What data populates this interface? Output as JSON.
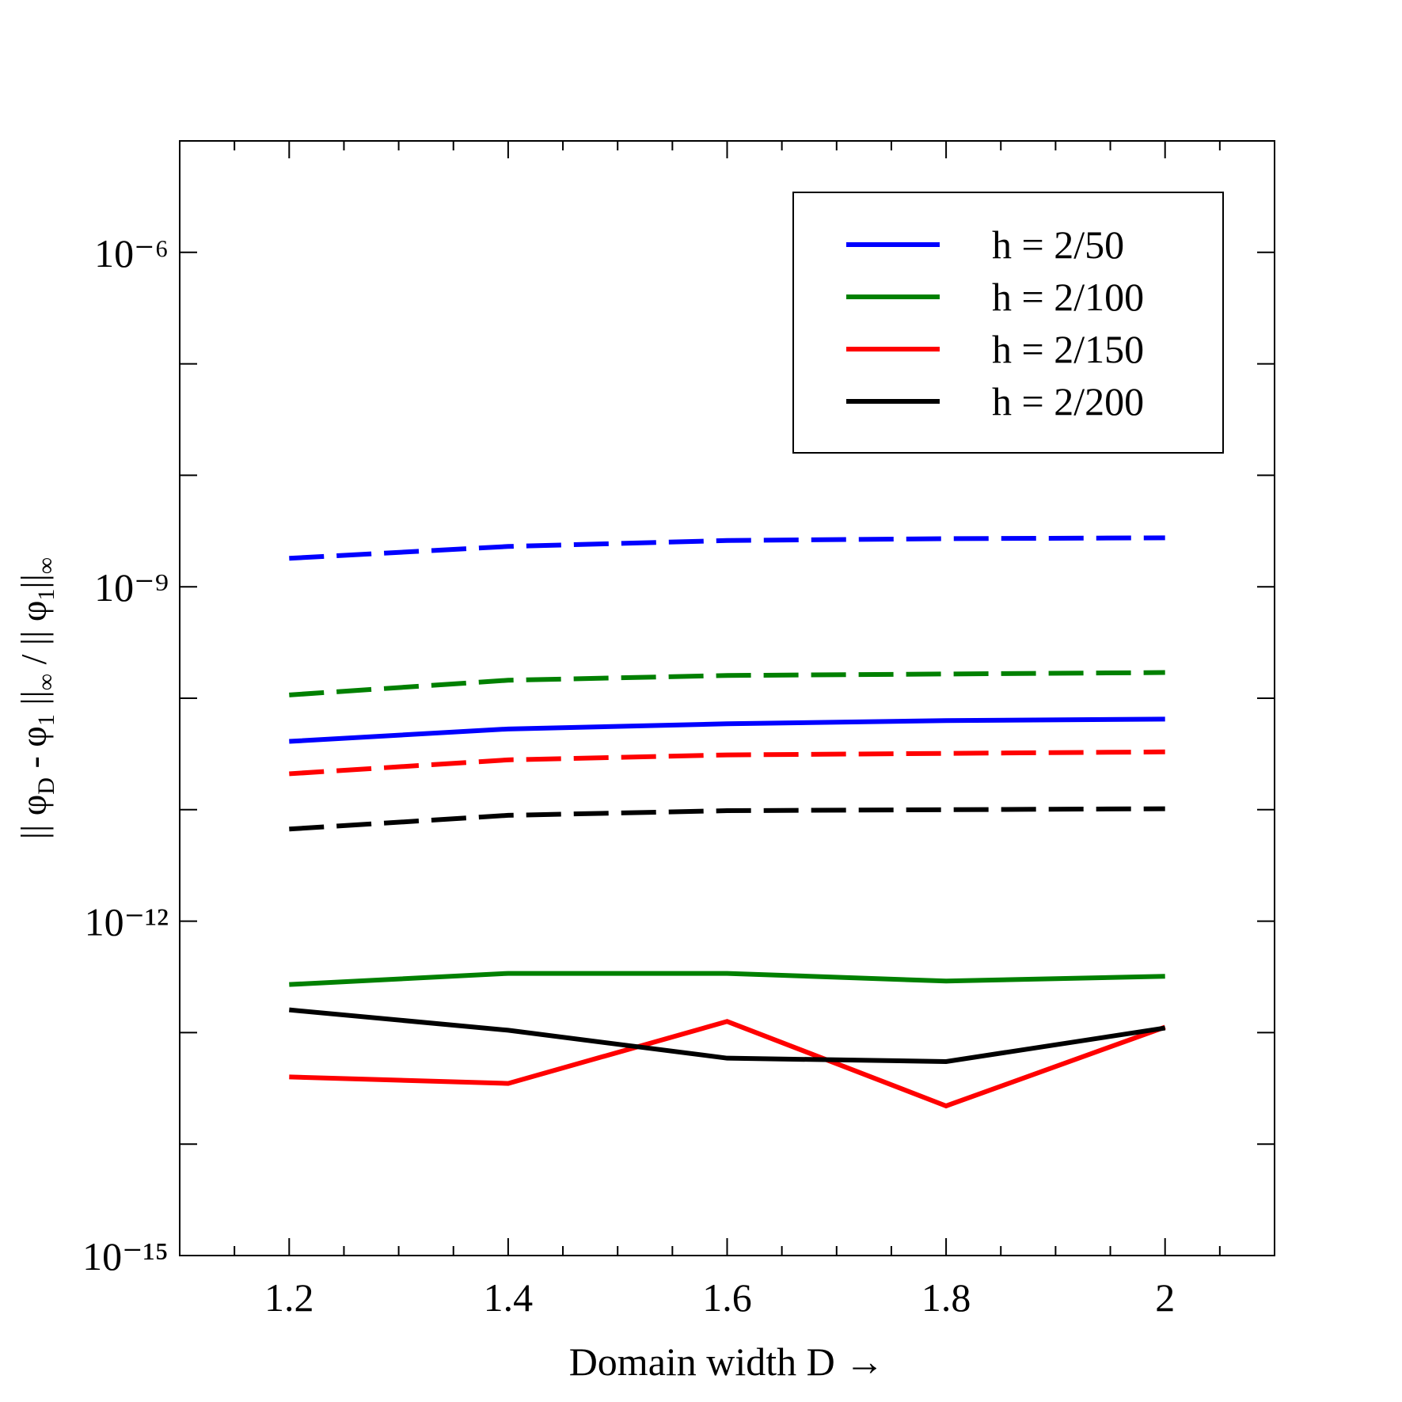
{
  "chart_data": {
    "type": "line",
    "xlabel": "Domain width D →",
    "ylabel": [
      "|| φ",
      "D",
      " - φ",
      "1",
      " ||",
      "∞",
      " /   || φ",
      "1",
      "||",
      "∞"
    ],
    "x": [
      1.2,
      1.4,
      1.6,
      1.8,
      2
    ],
    "xlim": [
      1.1,
      2.1
    ],
    "xticks": [
      1.2,
      1.4,
      1.6,
      1.8,
      2
    ],
    "xminorticks": [
      1.15,
      1.25,
      1.3,
      1.35,
      1.45,
      1.5,
      1.55,
      1.65,
      1.7,
      1.75,
      1.85,
      1.9,
      1.95,
      2.05
    ],
    "ylim": [
      1e-15,
      1e-05
    ],
    "yscale": "log",
    "yticks": [
      {
        "value": 1e-15,
        "label": "10⁻¹⁵"
      },
      {
        "value": 1e-12,
        "label": "10⁻¹²"
      },
      {
        "value": 1e-09,
        "label": "10⁻⁹"
      },
      {
        "value": 1e-06,
        "label": "10⁻⁶"
      }
    ],
    "yminorticks": [
      1e-14,
      1e-13,
      1e-11,
      1e-10,
      1e-08,
      1e-07
    ],
    "legend": "upper right",
    "series": [
      {
        "name": "h = 2/50",
        "color": "#0000ff",
        "dashed": false,
        "values": [
          4.1e-11,
          5.3e-11,
          5.9e-11,
          6.3e-11,
          6.5e-11
        ]
      },
      {
        "name": "h = 2/100",
        "color": "#008000",
        "dashed": false,
        "values": [
          2.7e-13,
          3.4e-13,
          3.4e-13,
          2.9e-13,
          3.2e-13
        ]
      },
      {
        "name": "h = 2/150",
        "color": "#ff0000",
        "dashed": false,
        "values": [
          4e-14,
          3.5e-14,
          1.26e-13,
          2.2e-14,
          1.12e-13
        ]
      },
      {
        "name": "h = 2/200",
        "color": "#000000",
        "dashed": false,
        "values": [
          1.6e-13,
          1.05e-13,
          5.9e-14,
          5.5e-14,
          1.1e-13
        ]
      },
      {
        "color": "#0000ff",
        "dashed": true,
        "values": [
          1.8e-09,
          2.3e-09,
          2.6e-09,
          2.7e-09,
          2.75e-09
        ]
      },
      {
        "color": "#008000",
        "dashed": true,
        "values": [
          1.07e-10,
          1.45e-10,
          1.6e-10,
          1.65e-10,
          1.7e-10
        ]
      },
      {
        "color": "#ff0000",
        "dashed": true,
        "values": [
          2.1e-11,
          2.8e-11,
          3.1e-11,
          3.2e-11,
          3.3e-11
        ]
      },
      {
        "color": "#000000",
        "dashed": true,
        "values": [
          6.7e-12,
          8.9e-12,
          9.8e-12,
          1e-11,
          1.02e-11
        ]
      }
    ]
  }
}
